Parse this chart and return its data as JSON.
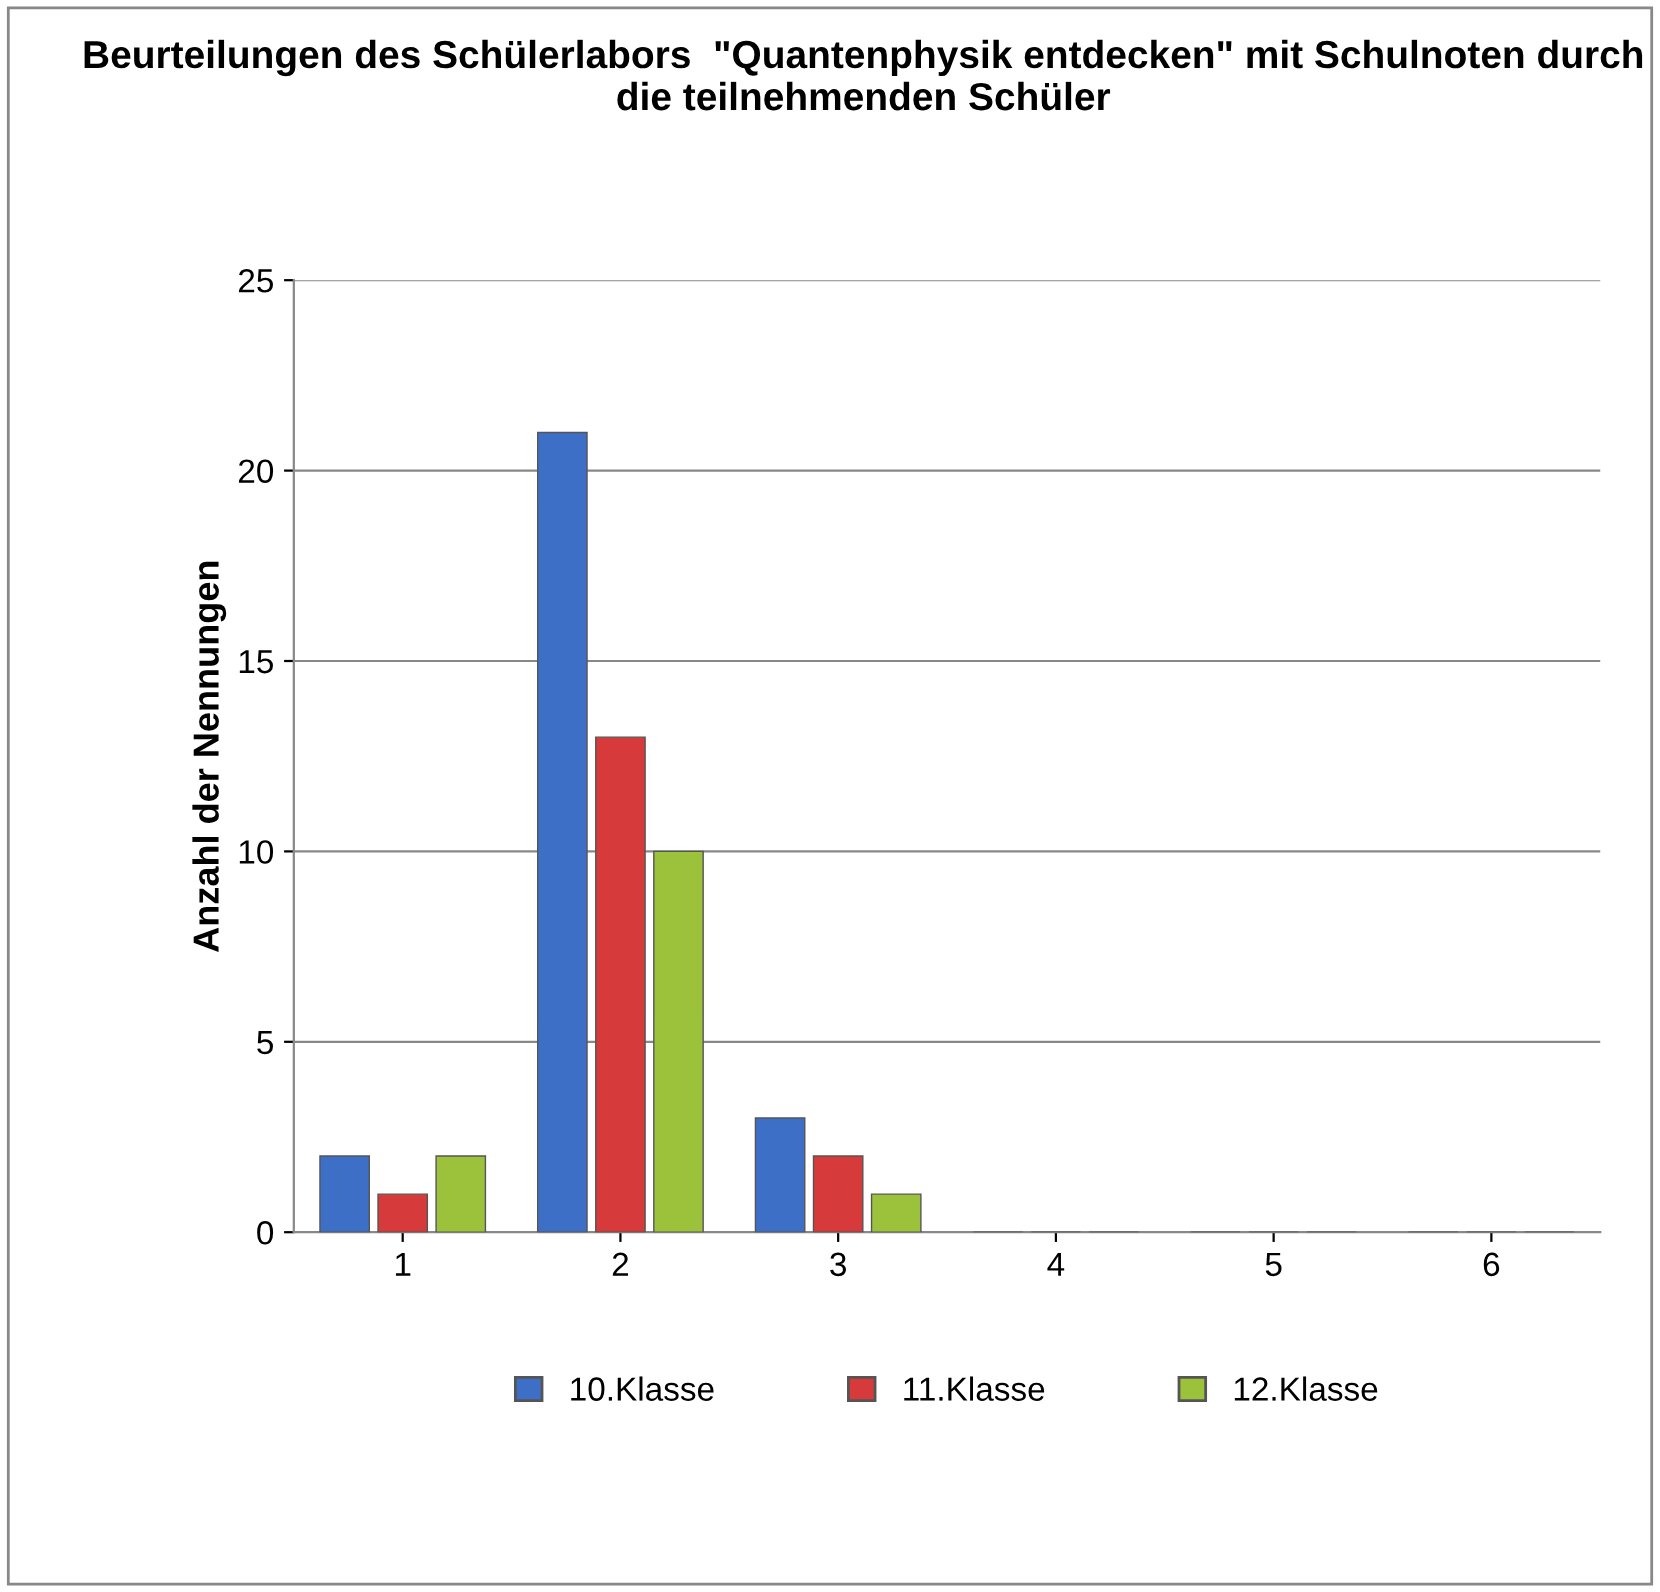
{
  "chart_data": {
    "type": "bar",
    "title": "Beurteilungen des Schülerlabors  \"Quantenphysik entdecken\" mit Schulnoten durch die teilnehmenden Schüler",
    "ylabel": "Anzahl der Nennungen",
    "categories": [
      "1",
      "2",
      "3",
      "4",
      "5",
      "6"
    ],
    "series": [
      {
        "name": "10.Klasse",
        "color": "#3d6fc6",
        "values": [
          2,
          21,
          3,
          0,
          0,
          0
        ]
      },
      {
        "name": "11.Klasse",
        "color": "#d63a3a",
        "values": [
          1,
          13,
          2,
          0,
          0,
          0
        ]
      },
      {
        "name": "12.Klasse",
        "color": "#9cc23c",
        "values": [
          2,
          10,
          1,
          0,
          0,
          0
        ]
      }
    ],
    "ylim": [
      0,
      25
    ],
    "yticks": [
      0,
      5,
      10,
      15,
      20,
      25
    ],
    "grid": "y",
    "legend": "bottom"
  }
}
